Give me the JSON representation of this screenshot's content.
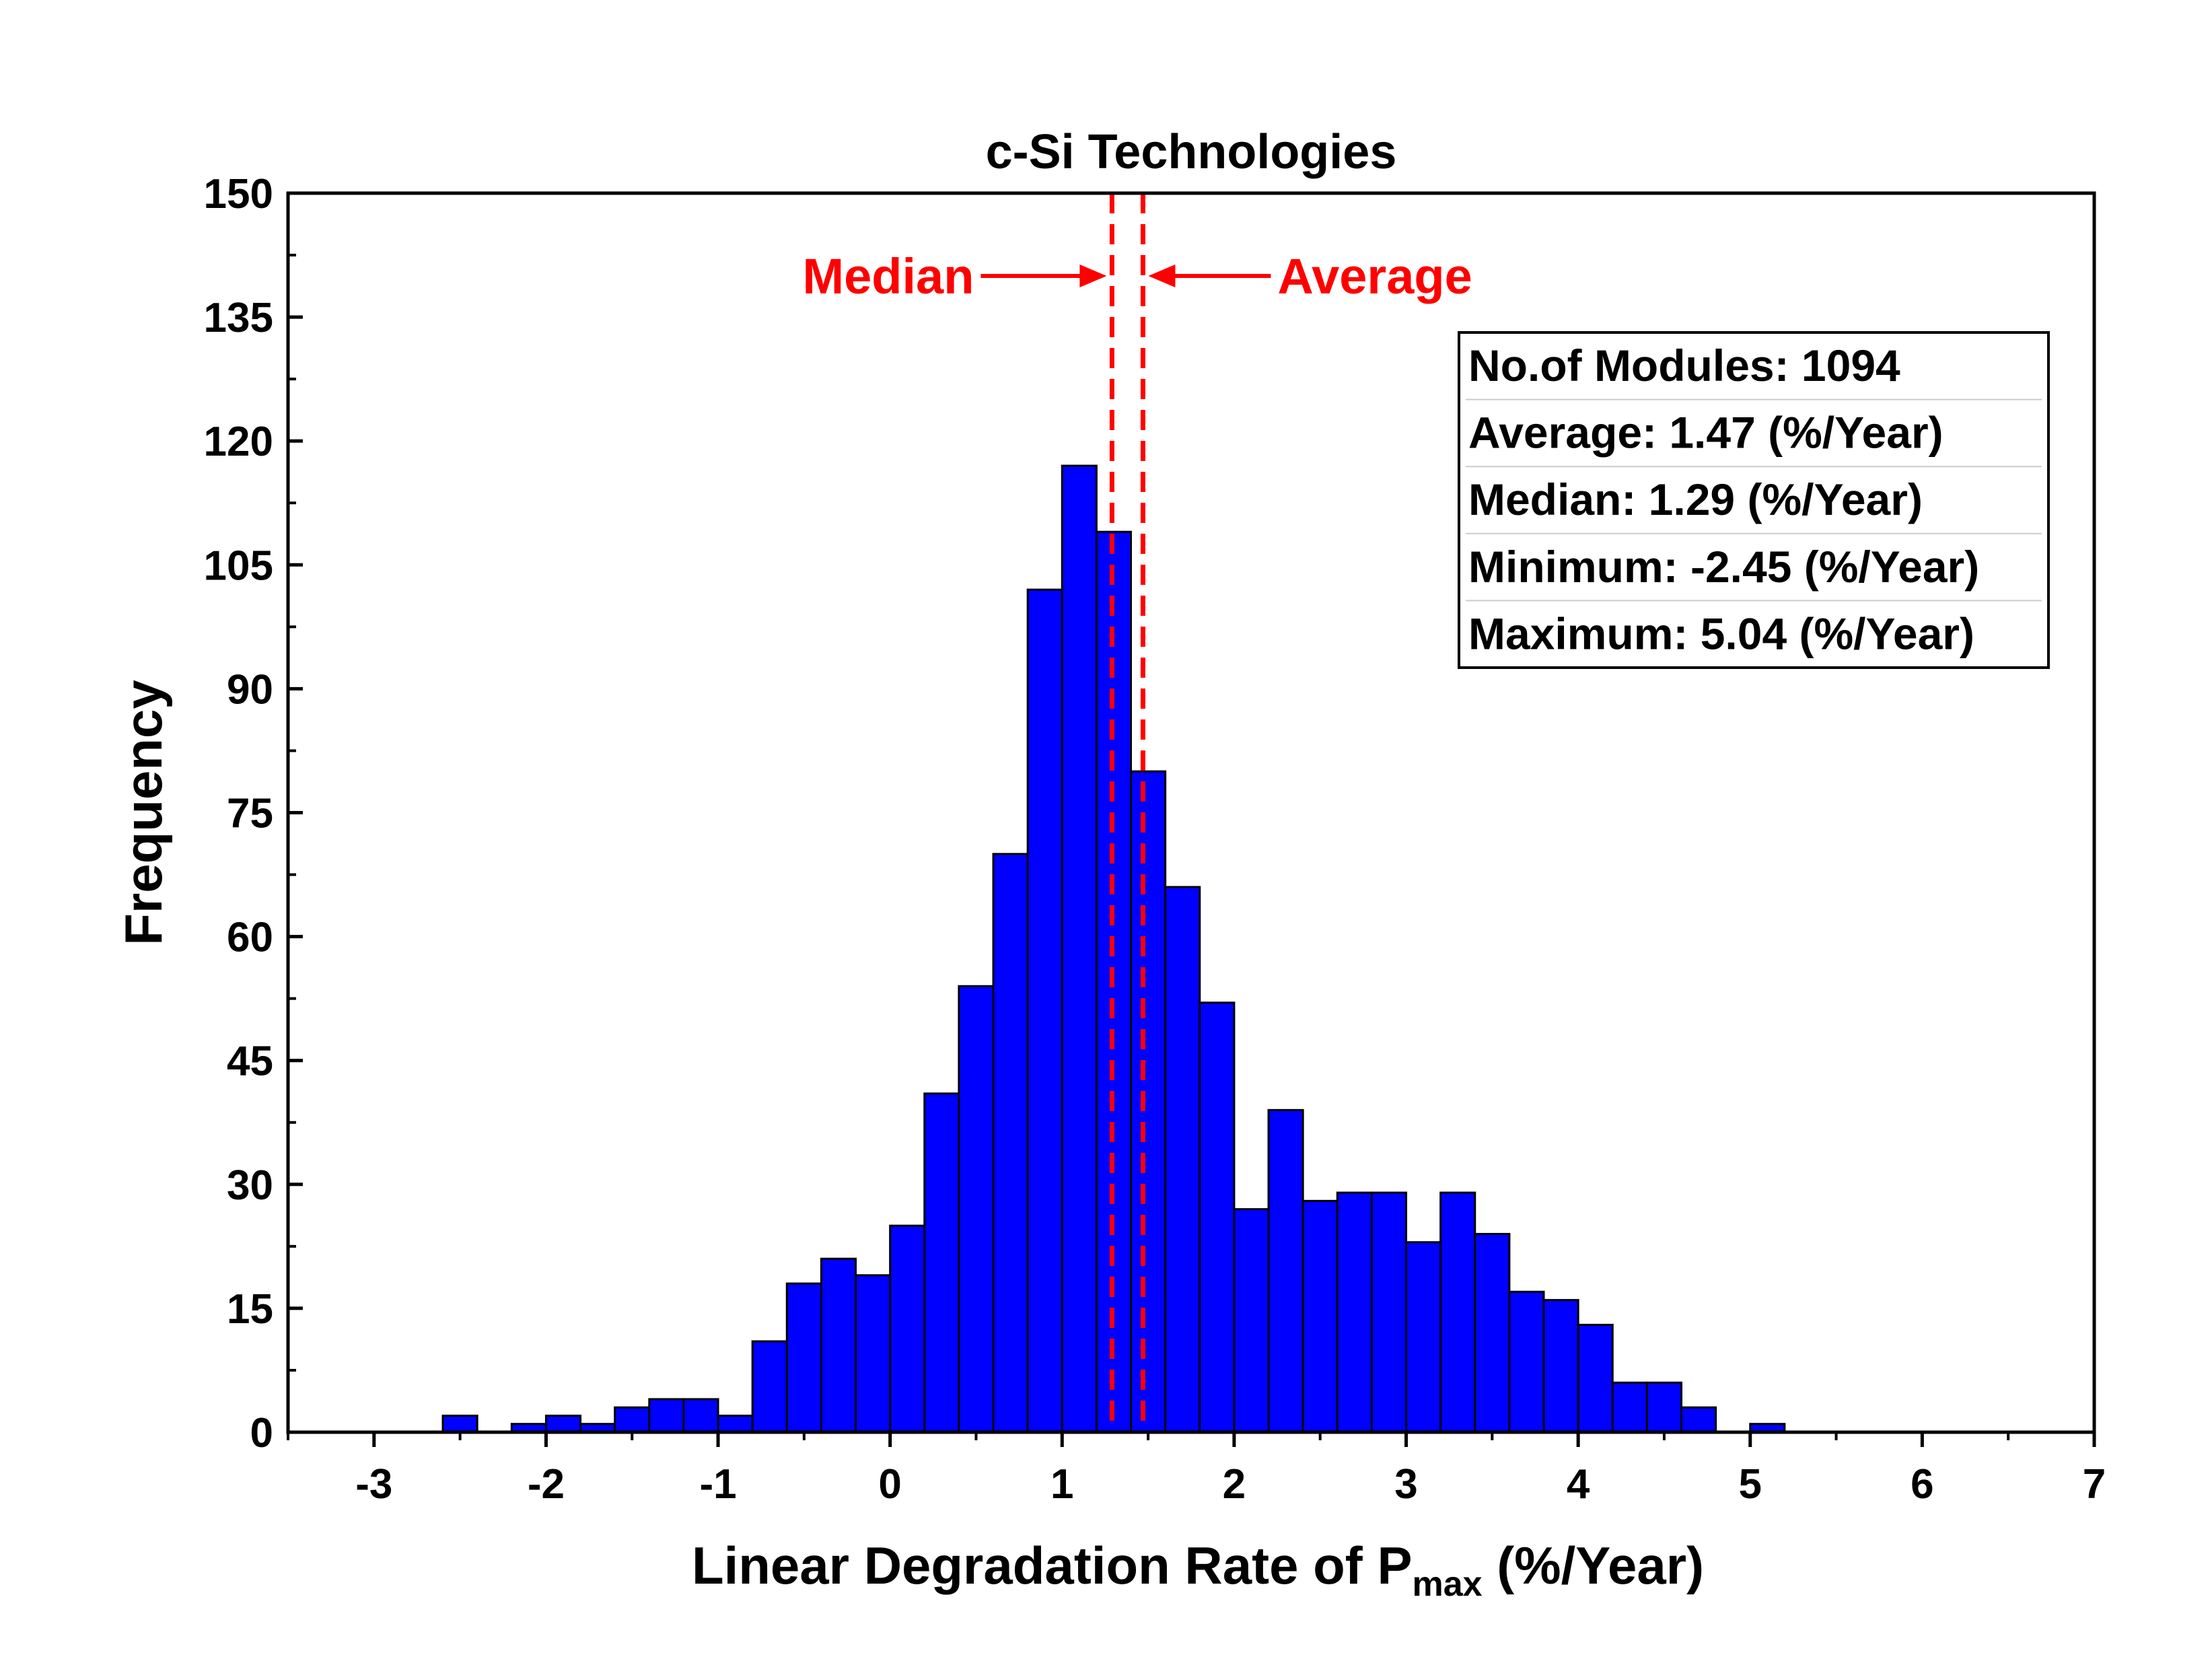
{
  "chart_data": {
    "type": "bar",
    "title": "c-Si Technologies",
    "xlabel": "Linear Degradation Rate of P",
    "xlabel_sub": "max",
    "xlabel_suffix": " (%/Year)",
    "ylabel": "Frequency",
    "xlim": [
      -3.5,
      7
    ],
    "ylim": [
      0,
      150
    ],
    "xticks": [
      -3,
      -2,
      -1,
      0,
      1,
      2,
      3,
      4,
      5,
      6,
      7
    ],
    "yticks": [
      0,
      15,
      30,
      45,
      60,
      75,
      90,
      105,
      120,
      135,
      150
    ],
    "bin_width": 0.2,
    "bin_starts": [
      -2.6,
      -2.2,
      -2.0,
      -1.8,
      -1.6,
      -1.4,
      -1.2,
      -1.0,
      -0.8,
      -0.6,
      -0.4,
      -0.2,
      0.0,
      0.2,
      0.4,
      0.6,
      0.8,
      1.0,
      1.2,
      1.4,
      1.6,
      1.8,
      2.0,
      2.2,
      2.4,
      2.6,
      2.8,
      3.0,
      3.2,
      3.4,
      3.6,
      3.8,
      4.0,
      4.2,
      4.4,
      4.6,
      5.0
    ],
    "values": [
      2,
      1,
      2,
      1,
      3,
      4,
      4,
      2,
      11,
      18,
      21,
      19,
      25,
      41,
      54,
      70,
      102,
      117,
      109,
      80,
      66,
      52,
      27,
      39,
      28,
      29,
      29,
      23,
      29,
      24,
      17,
      16,
      13,
      6,
      6,
      3,
      1
    ],
    "bar_color": "#0000ff",
    "reference_lines": [
      {
        "label": "Median",
        "x": 1.29,
        "color": "#ff0000"
      },
      {
        "label": "Average",
        "x": 1.47,
        "color": "#ff0000"
      }
    ],
    "stats_box": [
      "No.of Modules: 1094",
      "Average: 1.47 (%/Year)",
      "Median: 1.29 (%/Year)",
      "Minimum: -2.45 (%/Year)",
      "Maximum: 5.04 (%/Year)"
    ],
    "grid": false,
    "legend": "none"
  }
}
